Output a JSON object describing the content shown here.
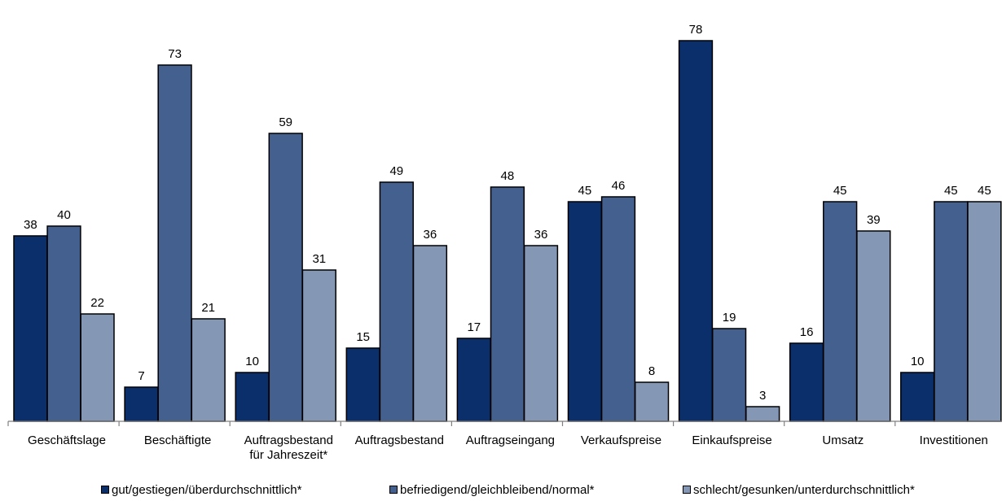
{
  "chart_data": {
    "type": "bar",
    "title": "",
    "xlabel": "",
    "ylabel": "",
    "ylim": [
      0,
      80
    ],
    "grid": false,
    "legend_position": "bottom",
    "categories": [
      [
        "Geschäftslage"
      ],
      [
        "Beschäftigte"
      ],
      [
        "Auftragsbestand",
        "für Jahreszeit*"
      ],
      [
        "Auftragsbestand"
      ],
      [
        "Auftragseingang"
      ],
      [
        "Verkaufspreise"
      ],
      [
        "Einkaufspreise"
      ],
      [
        "Umsatz"
      ],
      [
        "Investitionen"
      ]
    ],
    "series": [
      {
        "name": "gut/gestiegen/überdurchschnittlich*",
        "color": "#0b2f6b",
        "values": [
          38,
          7,
          10,
          15,
          17,
          45,
          78,
          16,
          10
        ]
      },
      {
        "name": "befriedigend/gleichbleibend/normal*",
        "color": "#44608f",
        "values": [
          40,
          73,
          59,
          49,
          48,
          46,
          19,
          45,
          45
        ]
      },
      {
        "name": "schlecht/gesunken/unterdurchschnittlich*",
        "color": "#8497b5",
        "values": [
          22,
          21,
          31,
          36,
          36,
          8,
          3,
          39,
          45
        ]
      }
    ]
  }
}
